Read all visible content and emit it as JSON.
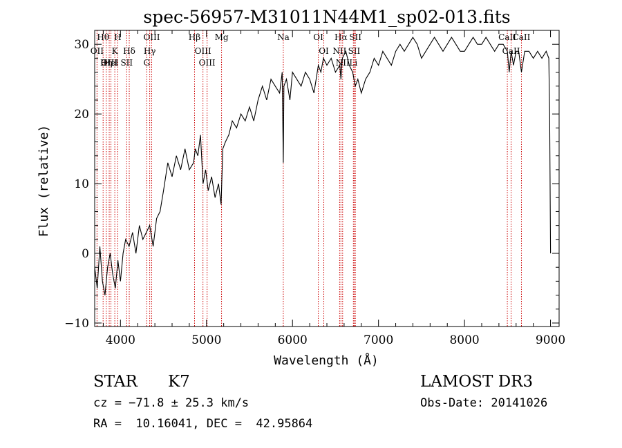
{
  "chart_data": {
    "type": "line",
    "title": "spec-56957-M31011N44M1_sp02-013.fits",
    "xlabel": "Wavelength (Å)",
    "ylabel": "Flux (relative)",
    "xlim": [
      3700,
      9100
    ],
    "ylim": [
      -10.5,
      32
    ],
    "x_ticks": [
      4000,
      5000,
      6000,
      7000,
      8000,
      9000
    ],
    "x_tick_labels": [
      "4000",
      "5000",
      "6000",
      "7000",
      "8000",
      "9000"
    ],
    "y_ticks": [
      -10,
      0,
      10,
      20,
      30
    ],
    "y_tick_labels": [
      "−10",
      "0",
      "10",
      "20",
      "30"
    ],
    "line_color": "#000000",
    "marker_color": "#cc0000",
    "series": [
      {
        "name": "flux",
        "x": [
          3700,
          3730,
          3760,
          3790,
          3820,
          3850,
          3880,
          3910,
          3940,
          3970,
          4000,
          4030,
          4060,
          4100,
          4140,
          4180,
          4220,
          4260,
          4300,
          4340,
          4380,
          4420,
          4460,
          4500,
          4550,
          4600,
          4650,
          4700,
          4750,
          4800,
          4850,
          4870,
          4900,
          4930,
          4960,
          4990,
          5020,
          5060,
          5100,
          5140,
          5170,
          5190,
          5220,
          5260,
          5300,
          5350,
          5400,
          5450,
          5500,
          5550,
          5600,
          5650,
          5700,
          5750,
          5800,
          5850,
          5880,
          5893,
          5900,
          5930,
          5970,
          6000,
          6050,
          6100,
          6150,
          6200,
          6250,
          6300,
          6330,
          6360,
          6400,
          6450,
          6500,
          6550,
          6563,
          6580,
          6620,
          6660,
          6700,
          6730,
          6760,
          6800,
          6850,
          6900,
          6950,
          7000,
          7050,
          7100,
          7150,
          7200,
          7250,
          7300,
          7350,
          7400,
          7450,
          7500,
          7550,
          7600,
          7650,
          7700,
          7750,
          7800,
          7850,
          7900,
          7950,
          8000,
          8050,
          8100,
          8150,
          8200,
          8250,
          8300,
          8350,
          8400,
          8450,
          8498,
          8520,
          8542,
          8570,
          8600,
          8630,
          8662,
          8700,
          8750,
          8800,
          8850,
          8900,
          8950,
          8980,
          8990,
          9000
        ],
        "y": [
          -2,
          -5,
          1,
          -4,
          -6,
          -2,
          0,
          -3,
          -5,
          -1,
          -4,
          0,
          2,
          1,
          3,
          0,
          4,
          2,
          3,
          4,
          1,
          5,
          6,
          9,
          13,
          11,
          14,
          12,
          15,
          12,
          13,
          15,
          14,
          17,
          10,
          12,
          9,
          11,
          8,
          10,
          7,
          15,
          16,
          17,
          19,
          18,
          20,
          19,
          21,
          19,
          22,
          24,
          22,
          25,
          24,
          23,
          26,
          13,
          24,
          25,
          22,
          26,
          25,
          24,
          26,
          25,
          23,
          27,
          26,
          28,
          27,
          28,
          26,
          27,
          25,
          28,
          29,
          27,
          26,
          24,
          25,
          23,
          25,
          26,
          28,
          27,
          29,
          28,
          27,
          29,
          30,
          29,
          30,
          31,
          30,
          28,
          29,
          30,
          31,
          30,
          29,
          30,
          31,
          30,
          29,
          29,
          30,
          31,
          30,
          30,
          31,
          30,
          29,
          30,
          30,
          29,
          26,
          29,
          27,
          29,
          29,
          26,
          29,
          29,
          28,
          29,
          28,
          29,
          28,
          20,
          0
        ]
      }
    ],
    "line_markers": [
      {
        "label": "Hθ",
        "x": 3798
      },
      {
        "label": "OII",
        "x": 3727
      },
      {
        "label": "OIII",
        "x": 3869
      },
      {
        "label": "K",
        "x": 3934
      },
      {
        "label": "HeI",
        "x": 3889
      },
      {
        "label": "Hη",
        "x": 3835
      },
      {
        "label": "H",
        "x": 3968
      },
      {
        "label": "Hδ",
        "x": 4102
      },
      {
        "label": "SII",
        "x": 4072
      },
      {
        "label": "OIII",
        "x": 4363
      },
      {
        "label": "Hγ",
        "x": 4340
      },
      {
        "label": "G",
        "x": 4305
      },
      {
        "label": "Hβ",
        "x": 4861
      },
      {
        "label": "OIII",
        "x": 4959
      },
      {
        "label": "OIII",
        "x": 5007
      },
      {
        "label": "Mg",
        "x": 5175
      },
      {
        "label": "Na",
        "x": 5893
      },
      {
        "label": "OI",
        "x": 6300
      },
      {
        "label": "OI",
        "x": 6364
      },
      {
        "label": "Hα",
        "x": 6563
      },
      {
        "label": "NII",
        "x": 6548
      },
      {
        "label": "NII",
        "x": 6583
      },
      {
        "label": "SII",
        "x": 6717
      },
      {
        "label": "SII",
        "x": 6731
      },
      {
        "label": "Li",
        "x": 6708
      },
      {
        "label": "CaII",
        "x": 8498
      },
      {
        "label": "CaII",
        "x": 8542
      },
      {
        "label": "CaII",
        "x": 8662
      }
    ],
    "annotations": {
      "object_type": "STAR",
      "subclass": "K7",
      "survey": "LAMOST DR3",
      "redshift": "cz = −71.8 ± 25.3 km/s",
      "obs_date": "Obs-Date: 20141026",
      "coords": "RA =  10.16041, DEC =  42.95864"
    }
  }
}
